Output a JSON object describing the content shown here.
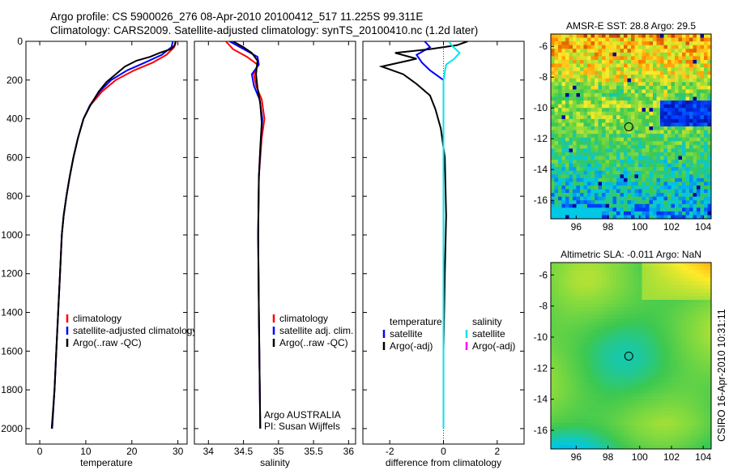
{
  "header": {
    "title_line1": "Argo profile: CS 5900026_276 08-Apr-2010 20100412_517 11.225S 99.311E",
    "title_line2": "Climatology: CARS2009. Satellite-adjusted climatology: synTS_20100410.nc (1.2d later)"
  },
  "side_label": "CSIRO 16-Apr-2010 10:31:11",
  "colors": {
    "red": "#ff0000",
    "blue": "#0000ff",
    "black": "#000000",
    "cyan": "#00e5ee",
    "magenta": "#ff00ff"
  },
  "chart_data": [
    {
      "id": "temperature",
      "type": "line",
      "xlabel": "temperature",
      "ylabel": "",
      "xlim": [
        -3,
        32
      ],
      "ylim": [
        2080,
        0
      ],
      "xticks": [
        0,
        10,
        20,
        30
      ],
      "yticks": [
        0,
        200,
        400,
        600,
        800,
        1000,
        1200,
        1400,
        1600,
        1800,
        2000
      ],
      "legend": [
        {
          "label": "climatology",
          "color": "red"
        },
        {
          "label": "satellite-adjusted climatology",
          "color": "blue"
        },
        {
          "label": "Argo(..raw -QC)",
          "color": "black"
        }
      ],
      "series": [
        {
          "name": "climatology",
          "color": "red",
          "points": [
            [
              29.6,
              0
            ],
            [
              29.2,
              30
            ],
            [
              27.5,
              70
            ],
            [
              24.5,
              110
            ],
            [
              20.5,
              150
            ],
            [
              16.5,
              200
            ],
            [
              13.5,
              260
            ],
            [
              11.0,
              330
            ],
            [
              9.5,
              400
            ],
            [
              8.3,
              500
            ],
            [
              7.3,
              600
            ],
            [
              6.5,
              700
            ],
            [
              5.8,
              800
            ],
            [
              5.2,
              900
            ],
            [
              4.8,
              1000
            ],
            [
              4.4,
              1200
            ],
            [
              4.0,
              1400
            ],
            [
              3.6,
              1600
            ],
            [
              3.2,
              1800
            ],
            [
              2.7,
              2000
            ]
          ]
        },
        {
          "name": "satellite-adjusted climatology",
          "color": "blue",
          "points": [
            [
              28.9,
              0
            ],
            [
              28.6,
              30
            ],
            [
              26.5,
              70
            ],
            [
              22.8,
              110
            ],
            [
              19.0,
              150
            ],
            [
              15.5,
              200
            ],
            [
              13.0,
              260
            ],
            [
              10.9,
              330
            ],
            [
              9.5,
              400
            ],
            [
              8.3,
              500
            ],
            [
              7.3,
              600
            ],
            [
              6.5,
              700
            ],
            [
              5.8,
              800
            ],
            [
              5.2,
              900
            ],
            [
              4.8,
              1000
            ],
            [
              4.4,
              1200
            ],
            [
              4.0,
              1400
            ],
            [
              3.6,
              1600
            ],
            [
              3.2,
              1800
            ],
            [
              2.7,
              2000
            ]
          ]
        },
        {
          "name": "Argo(..raw -QC)",
          "color": "black",
          "points": [
            [
              29.5,
              0
            ],
            [
              29.3,
              20
            ],
            [
              28.5,
              40
            ],
            [
              26.0,
              60
            ],
            [
              24.0,
              80
            ],
            [
              21.0,
              100
            ],
            [
              18.5,
              130
            ],
            [
              16.5,
              170
            ],
            [
              14.5,
              210
            ],
            [
              12.8,
              260
            ],
            [
              11.0,
              330
            ],
            [
              9.5,
              400
            ],
            [
              8.3,
              500
            ],
            [
              7.3,
              600
            ],
            [
              6.5,
              700
            ],
            [
              5.8,
              800
            ],
            [
              5.2,
              900
            ],
            [
              4.8,
              1000
            ],
            [
              4.4,
              1200
            ],
            [
              4.0,
              1400
            ],
            [
              3.6,
              1600
            ],
            [
              3.2,
              1800
            ],
            [
              2.6,
              2000
            ]
          ]
        }
      ]
    },
    {
      "id": "salinity",
      "type": "line",
      "xlabel": "salinity",
      "ylabel": "",
      "xlim": [
        33.8,
        36.1
      ],
      "ylim": [
        2080,
        0
      ],
      "xticks": [
        34,
        34.5,
        35,
        35.5,
        36
      ],
      "xtick_labels": [
        "34",
        "34.5",
        "35",
        "35.5",
        "36"
      ],
      "yticks": [
        0,
        200,
        400,
        600,
        800,
        1000,
        1200,
        1400,
        1600,
        1800,
        2000
      ],
      "legend": [
        {
          "label": "climatology",
          "color": "red"
        },
        {
          "label": "satellite adj. clim.",
          "color": "blue"
        },
        {
          "label": "Argo(..raw -QC)",
          "color": "black"
        }
      ],
      "annotations": [
        "Argo AUSTRALIA",
        "PI: Susan Wijffels"
      ],
      "series": [
        {
          "name": "climatology",
          "color": "red",
          "points": [
            [
              34.25,
              0
            ],
            [
              34.35,
              40
            ],
            [
              34.55,
              80
            ],
            [
              34.7,
              120
            ],
            [
              34.65,
              170
            ],
            [
              34.68,
              230
            ],
            [
              34.76,
              300
            ],
            [
              34.8,
              400
            ],
            [
              34.76,
              500
            ],
            [
              34.72,
              700
            ],
            [
              34.71,
              1000
            ],
            [
              34.72,
              1400
            ],
            [
              34.74,
              2000
            ]
          ]
        },
        {
          "name": "satellite adj. clim.",
          "color": "blue",
          "points": [
            [
              34.3,
              0
            ],
            [
              34.55,
              50
            ],
            [
              34.7,
              80
            ],
            [
              34.72,
              120
            ],
            [
              34.62,
              170
            ],
            [
              34.65,
              230
            ],
            [
              34.73,
              300
            ],
            [
              34.77,
              400
            ],
            [
              34.75,
              500
            ],
            [
              34.72,
              700
            ],
            [
              34.71,
              1000
            ],
            [
              34.72,
              1400
            ],
            [
              34.74,
              2000
            ]
          ]
        },
        {
          "name": "Argo(..raw -QC)",
          "color": "black",
          "points": [
            [
              34.35,
              0
            ],
            [
              34.5,
              30
            ],
            [
              34.62,
              60
            ],
            [
              34.7,
              100
            ],
            [
              34.68,
              170
            ],
            [
              34.7,
              240
            ],
            [
              34.74,
              320
            ],
            [
              34.76,
              420
            ],
            [
              34.74,
              550
            ],
            [
              34.72,
              700
            ],
            [
              34.71,
              1000
            ],
            [
              34.72,
              1400
            ],
            [
              34.74,
              2000
            ]
          ]
        }
      ]
    },
    {
      "id": "difference",
      "type": "line",
      "xlabel": "difference from climatology",
      "ylabel": "",
      "xlim": [
        -3,
        3
      ],
      "ylim": [
        2080,
        0
      ],
      "xticks": [
        -2,
        0,
        2
      ],
      "yticks": [
        0,
        200,
        400,
        600,
        800,
        1000,
        1200,
        1400,
        1600,
        1800,
        2000
      ],
      "legend_left_header": "temperature",
      "legend_right_header": "salinity",
      "legend": [
        {
          "label": "satellite",
          "color": "blue",
          "col": "left"
        },
        {
          "label": "Argo(-adj)",
          "color": "black",
          "col": "left"
        },
        {
          "label": "satellite",
          "color": "cyan",
          "col": "right"
        },
        {
          "label": "Argo(-adj)",
          "color": "magenta",
          "col": "right"
        }
      ],
      "series": [
        {
          "name": "temperature satellite",
          "color": "blue",
          "points": [
            [
              -0.7,
              0
            ],
            [
              -0.5,
              30
            ],
            [
              -1.0,
              70
            ],
            [
              -0.8,
              110
            ],
            [
              -0.5,
              150
            ],
            [
              0,
              200
            ],
            [
              0,
              2000
            ]
          ]
        },
        {
          "name": "temperature Argo(-adj)",
          "color": "black",
          "points": [
            [
              0.9,
              0
            ],
            [
              0.5,
              20
            ],
            [
              -0.5,
              40
            ],
            [
              -1.8,
              60
            ],
            [
              -1.0,
              90
            ],
            [
              -2.3,
              130
            ],
            [
              -1.5,
              170
            ],
            [
              -1.0,
              220
            ],
            [
              -0.5,
              280
            ],
            [
              -0.3,
              350
            ],
            [
              -0.1,
              450
            ],
            [
              0.05,
              600
            ],
            [
              0.1,
              900
            ],
            [
              0.05,
              1200
            ],
            [
              0,
              1600
            ],
            [
              0,
              2000
            ]
          ]
        },
        {
          "name": "salinity satellite",
          "color": "cyan",
          "points": [
            [
              0.2,
              0
            ],
            [
              0.3,
              20
            ],
            [
              0.6,
              60
            ],
            [
              0.4,
              90
            ],
            [
              0.1,
              120
            ],
            [
              0,
              200
            ],
            [
              0,
              2000
            ]
          ]
        },
        {
          "name": "salinity Argo(-adj)",
          "color": "magenta",
          "points": []
        }
      ]
    },
    {
      "id": "sst_map",
      "type": "heatmap",
      "title": "AMSR-E SST: 28.8 Argo: 29.5",
      "xlim": [
        94.4,
        104.5
      ],
      "ylim": [
        -17.2,
        -5.2
      ],
      "xticks": [
        96,
        98,
        100,
        102,
        104
      ],
      "yticks": [
        -6,
        -8,
        -10,
        -12,
        -14,
        -16
      ],
      "marker": {
        "lon": 99.311,
        "lat": -11.225
      }
    },
    {
      "id": "sla_map",
      "type": "heatmap",
      "title": "Altimetric SLA: -0.011 Argo: NaN",
      "xlim": [
        94.4,
        104.5
      ],
      "ylim": [
        -17.2,
        -5.2
      ],
      "xticks": [
        96,
        98,
        100,
        102,
        104
      ],
      "yticks": [
        -6,
        -8,
        -10,
        -12,
        -14,
        -16
      ],
      "marker": {
        "lon": 99.311,
        "lat": -11.225
      }
    }
  ]
}
